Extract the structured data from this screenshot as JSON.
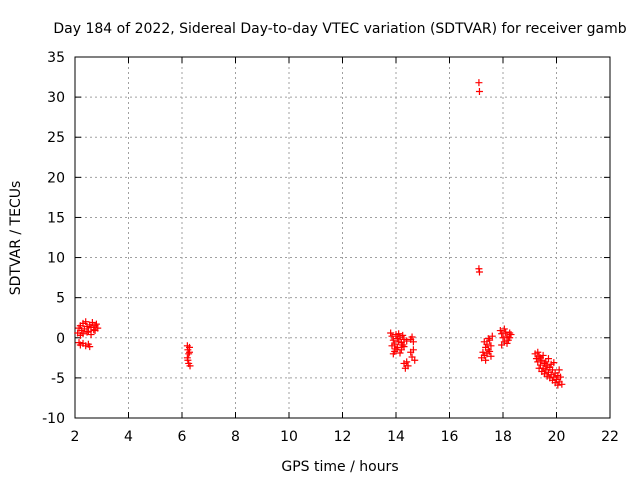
{
  "chart_data": {
    "type": "scatter",
    "title": "Day 184 of 2022, Sidereal Day-to-day VTEC variation (SDTVAR) for receiver gamb",
    "xlabel": "GPS time / hours",
    "ylabel": "SDTVAR / TECUs",
    "xlim": [
      2,
      22
    ],
    "ylim": [
      -10,
      35
    ],
    "xticks": [
      2,
      4,
      6,
      8,
      10,
      12,
      14,
      16,
      18,
      20,
      22
    ],
    "yticks": [
      -10,
      -5,
      0,
      5,
      10,
      15,
      20,
      25,
      30,
      35
    ],
    "grid": true,
    "marker": "+",
    "color": "#ff0000",
    "series": [
      {
        "name": "SDTVAR",
        "points": [
          [
            2.1,
            0.6
          ],
          [
            2.15,
            1.2
          ],
          [
            2.2,
            1.5
          ],
          [
            2.25,
            0.9
          ],
          [
            2.3,
            1.8
          ],
          [
            2.35,
            1.1
          ],
          [
            2.4,
            2.0
          ],
          [
            2.45,
            1.4
          ],
          [
            2.5,
            0.8
          ],
          [
            2.55,
            1.6
          ],
          [
            2.6,
            1.3
          ],
          [
            2.65,
            1.9
          ],
          [
            2.7,
            1.0
          ],
          [
            2.75,
            1.5
          ],
          [
            2.8,
            1.7
          ],
          [
            2.85,
            1.2
          ],
          [
            2.2,
            0.3
          ],
          [
            2.3,
            0.5
          ],
          [
            2.45,
            0.7
          ],
          [
            2.6,
            0.4
          ],
          [
            2.75,
            0.9
          ],
          [
            2.15,
            -0.6
          ],
          [
            2.2,
            -0.9
          ],
          [
            2.3,
            -0.7
          ],
          [
            2.4,
            -1.0
          ],
          [
            2.5,
            -0.8
          ],
          [
            2.55,
            -1.1
          ],
          [
            6.2,
            -1.0
          ],
          [
            6.22,
            -1.5
          ],
          [
            6.25,
            -2.0
          ],
          [
            6.28,
            -1.2
          ],
          [
            6.2,
            -2.5
          ],
          [
            6.25,
            -3.2
          ],
          [
            6.3,
            -3.5
          ],
          [
            6.22,
            -2.8
          ],
          [
            6.28,
            -1.8
          ],
          [
            13.8,
            0.6
          ],
          [
            13.85,
            0.2
          ],
          [
            13.9,
            -0.3
          ],
          [
            13.95,
            -0.8
          ],
          [
            14.0,
            0.4
          ],
          [
            14.05,
            -1.2
          ],
          [
            14.1,
            -0.5
          ],
          [
            14.15,
            0.1
          ],
          [
            14.2,
            -1.5
          ],
          [
            14.25,
            -0.9
          ],
          [
            14.3,
            -0.2
          ],
          [
            13.85,
            -1.0
          ],
          [
            13.95,
            -1.7
          ],
          [
            14.05,
            -0.1
          ],
          [
            14.15,
            -1.9
          ],
          [
            14.25,
            0.3
          ],
          [
            13.9,
            -2.0
          ],
          [
            14.0,
            -1.4
          ],
          [
            14.1,
            0.5
          ],
          [
            14.2,
            -0.6
          ],
          [
            14.3,
            -1.1
          ],
          [
            14.4,
            -0.4
          ],
          [
            14.3,
            -3.2
          ],
          [
            14.35,
            -3.8
          ],
          [
            14.4,
            -3.0
          ],
          [
            14.45,
            -3.5
          ],
          [
            14.55,
            -1.8
          ],
          [
            14.6,
            -2.4
          ],
          [
            14.65,
            -1.5
          ],
          [
            14.7,
            -2.8
          ],
          [
            14.55,
            -0.2
          ],
          [
            14.6,
            0.1
          ],
          [
            14.65,
            -0.5
          ],
          [
            17.1,
            31.8
          ],
          [
            17.12,
            30.7
          ],
          [
            17.1,
            8.6
          ],
          [
            17.12,
            8.2
          ],
          [
            17.2,
            -2.5
          ],
          [
            17.25,
            -1.8
          ],
          [
            17.3,
            -2.2
          ],
          [
            17.35,
            -1.2
          ],
          [
            17.4,
            -0.8
          ],
          [
            17.45,
            -1.5
          ],
          [
            17.5,
            -0.3
          ],
          [
            17.55,
            -1.0
          ],
          [
            17.6,
            0.2
          ],
          [
            17.3,
            -0.5
          ],
          [
            17.4,
            -2.0
          ],
          [
            17.5,
            -1.7
          ],
          [
            17.35,
            -2.8
          ],
          [
            17.45,
            -0.1
          ],
          [
            17.55,
            -2.3
          ],
          [
            17.9,
            0.9
          ],
          [
            17.95,
            0.5
          ],
          [
            18.0,
            0.0
          ],
          [
            18.05,
            -0.5
          ],
          [
            18.1,
            0.7
          ],
          [
            18.15,
            0.2
          ],
          [
            18.2,
            -0.3
          ],
          [
            18.25,
            0.6
          ],
          [
            17.95,
            -0.9
          ],
          [
            18.05,
            1.1
          ],
          [
            18.15,
            -0.7
          ],
          [
            18.25,
            0.0
          ],
          [
            18.3,
            0.4
          ],
          [
            19.2,
            -2.0
          ],
          [
            19.25,
            -2.6
          ],
          [
            19.3,
            -3.0
          ],
          [
            19.35,
            -2.3
          ],
          [
            19.4,
            -3.4
          ],
          [
            19.45,
            -2.8
          ],
          [
            19.5,
            -3.8
          ],
          [
            19.55,
            -3.2
          ],
          [
            19.6,
            -4.0
          ],
          [
            19.65,
            -3.5
          ],
          [
            19.7,
            -4.3
          ],
          [
            19.75,
            -3.7
          ],
          [
            19.8,
            -4.6
          ],
          [
            19.85,
            -4.0
          ],
          [
            19.9,
            -4.9
          ],
          [
            19.95,
            -4.4
          ],
          [
            20.0,
            -5.2
          ],
          [
            20.05,
            -4.7
          ],
          [
            20.1,
            -5.5
          ],
          [
            20.15,
            -4.9
          ],
          [
            20.2,
            -5.8
          ],
          [
            20.1,
            -4.0
          ],
          [
            19.3,
            -1.8
          ],
          [
            19.4,
            -2.5
          ],
          [
            19.5,
            -2.2
          ],
          [
            19.6,
            -3.0
          ],
          [
            19.7,
            -2.6
          ],
          [
            19.8,
            -3.3
          ],
          [
            19.9,
            -3.1
          ],
          [
            19.35,
            -3.8
          ],
          [
            19.45,
            -4.2
          ],
          [
            19.55,
            -4.5
          ],
          [
            19.65,
            -4.8
          ],
          [
            19.75,
            -5.0
          ],
          [
            19.85,
            -5.3
          ],
          [
            19.95,
            -5.6
          ],
          [
            20.05,
            -5.9
          ]
        ]
      }
    ]
  }
}
